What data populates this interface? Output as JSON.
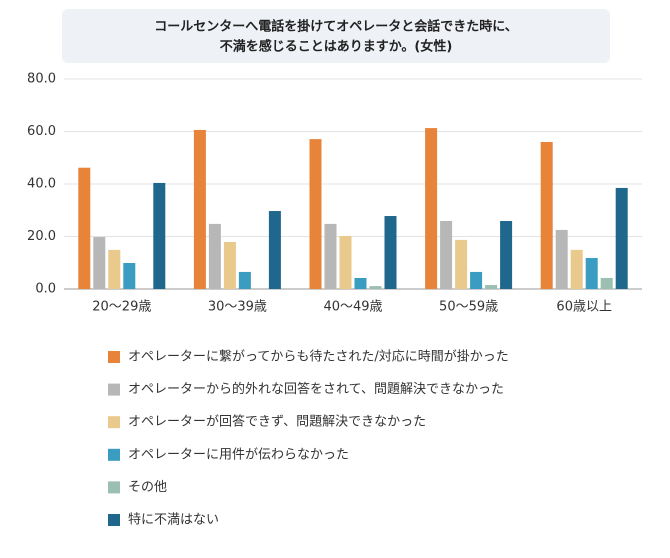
{
  "chart_data": {
    "type": "bar",
    "title": [
      "コールセンターへ電話を掛けてオペレータと会話できた時に、",
      "不満を感じることはありますか。(女性)"
    ],
    "categories": [
      "20〜29歳",
      "30〜39歳",
      "40〜49歳",
      "50〜59歳",
      "60歳以上"
    ],
    "series": [
      {
        "name": "オペレーターに繋がってからも待たされた/対応に時間が掛かった",
        "color": "#e8833a",
        "values": [
          46.2,
          60.6,
          57.1,
          61.3,
          56.0
        ]
      },
      {
        "name": "オペレーターから的外れな回答をされて、問題解決できなかった",
        "color": "#b7b7b7",
        "values": [
          19.8,
          24.8,
          24.8,
          25.9,
          22.5
        ]
      },
      {
        "name": "オペレーターが回答できず、問題解決できなかった",
        "color": "#e9c98c",
        "values": [
          14.9,
          17.9,
          20.2,
          18.7,
          14.9
        ]
      },
      {
        "name": "オペレーターに用件が伝わらなかった",
        "color": "#3a9cc0",
        "values": [
          9.9,
          6.5,
          4.2,
          6.5,
          11.8
        ]
      },
      {
        "name": "その他",
        "color": "#9bbfb1",
        "values": [
          0,
          0,
          1.1,
          1.5,
          4.2
        ]
      },
      {
        "name": "特に不満はない",
        "color": "#1f678c",
        "values": [
          40.4,
          29.7,
          27.8,
          25.9,
          38.5
        ]
      }
    ],
    "ylim": [
      0,
      80
    ],
    "yticks": [
      {
        "value": 0,
        "label": "0.0"
      },
      {
        "value": 20,
        "label": "20.0"
      },
      {
        "value": 40,
        "label": "40.0"
      },
      {
        "value": 60,
        "label": "60.0"
      },
      {
        "value": 80,
        "label": "80.0"
      }
    ],
    "grid": true
  }
}
